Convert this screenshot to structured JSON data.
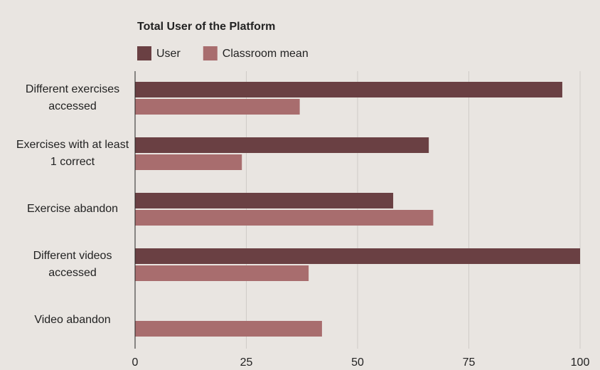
{
  "chart_data": {
    "type": "bar",
    "orientation": "horizontal",
    "title": "Total User of the Platform",
    "categories": [
      "Different exercises accessed",
      "Exercises with at least 1 correct",
      "Exercise abandon",
      "Different videos accessed",
      "Video abandon"
    ],
    "series": [
      {
        "name": "User",
        "color": "#6a4043",
        "values": [
          96,
          66,
          58,
          100,
          0
        ]
      },
      {
        "name": "Classroom mean",
        "color": "#a86d6e",
        "values": [
          37,
          24,
          67,
          39,
          42
        ]
      }
    ],
    "xlim": [
      0,
      100
    ],
    "xticks": [
      0,
      25,
      50,
      75,
      100
    ],
    "grid": true,
    "legend": "top"
  }
}
